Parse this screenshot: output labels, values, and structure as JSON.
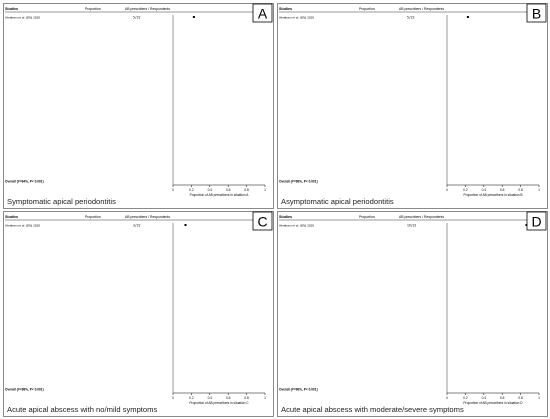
{
  "chart_data": [
    {
      "type": "forest",
      "panel_letter": "A",
      "caption": "Symptomatic apical periodontitis",
      "header": {
        "studies": "Studies",
        "proportion": "Proportion",
        "ab_ratio": "AB prescribers / Respondents"
      },
      "x_axis_label": "Proportion of AB prescribers in situation A",
      "x_ticks": [
        "0",
        "0.2",
        "0.4",
        "0.6",
        "0.8",
        "1"
      ],
      "xlim": [
        0,
        1
      ],
      "overall": {
        "label": "Overall (I²=94%, P< 0.001)"
      },
      "first_row": {
        "study": "Abraham et al. (EN) 2020",
        "value": 0.227,
        "ab_ratio": "5/22"
      }
    },
    {
      "type": "forest",
      "panel_letter": "B",
      "caption": "Asymptomatic apical periodontitis",
      "header": {
        "studies": "Studies",
        "proportion": "Proportion",
        "ab_ratio": "AB prescribers / Respondents"
      },
      "x_axis_label": "Proportion of AB prescribers in situation B",
      "x_ticks": [
        "0",
        "0.2",
        "0.4",
        "0.6",
        "0.8",
        "1"
      ],
      "xlim": [
        0,
        1
      ],
      "overall": {
        "label": "Overall (I²=98%, P< 0.001)"
      },
      "first_row": {
        "study": "Abraham et al. (EN) 2020",
        "value": 0.227,
        "ab_ratio": "5/22"
      }
    },
    {
      "type": "forest",
      "panel_letter": "C",
      "caption": "Acute apical abscess with no/mild symptoms",
      "header": {
        "studies": "Studies",
        "proportion": "Proportion",
        "ab_ratio": "AB prescribers / Respondents"
      },
      "x_axis_label": "Proportion of AB prescribers in situation C",
      "x_ticks": [
        "0",
        "0.2",
        "0.4",
        "0.6",
        "0.8",
        "1"
      ],
      "xlim": [
        0,
        1
      ],
      "overall": {
        "label": "Overall (I²=98%, P< 0.001)"
      },
      "first_row": {
        "study": "Abraham et al. (EN) 2020",
        "value": 0.136,
        "ab_ratio": "3/22"
      }
    },
    {
      "type": "forest",
      "panel_letter": "D",
      "caption": "Acute apical abscess with moderate/severe symptoms",
      "header": {
        "studies": "Studies",
        "proportion": "Proportion",
        "ab_ratio": "AB prescribers / Respondents"
      },
      "x_axis_label": "Proportion of AB prescribers in situation D",
      "x_ticks": [
        "0",
        "0.2",
        "0.4",
        "0.6",
        "0.8",
        "1"
      ],
      "xlim": [
        0,
        1
      ],
      "overall": {
        "label": "Overall (I²=96%, P< 0.001)"
      },
      "first_row": {
        "study": "Abraham et al. (EN) 2020",
        "value": 0.864,
        "ab_ratio": "19/22"
      }
    }
  ]
}
